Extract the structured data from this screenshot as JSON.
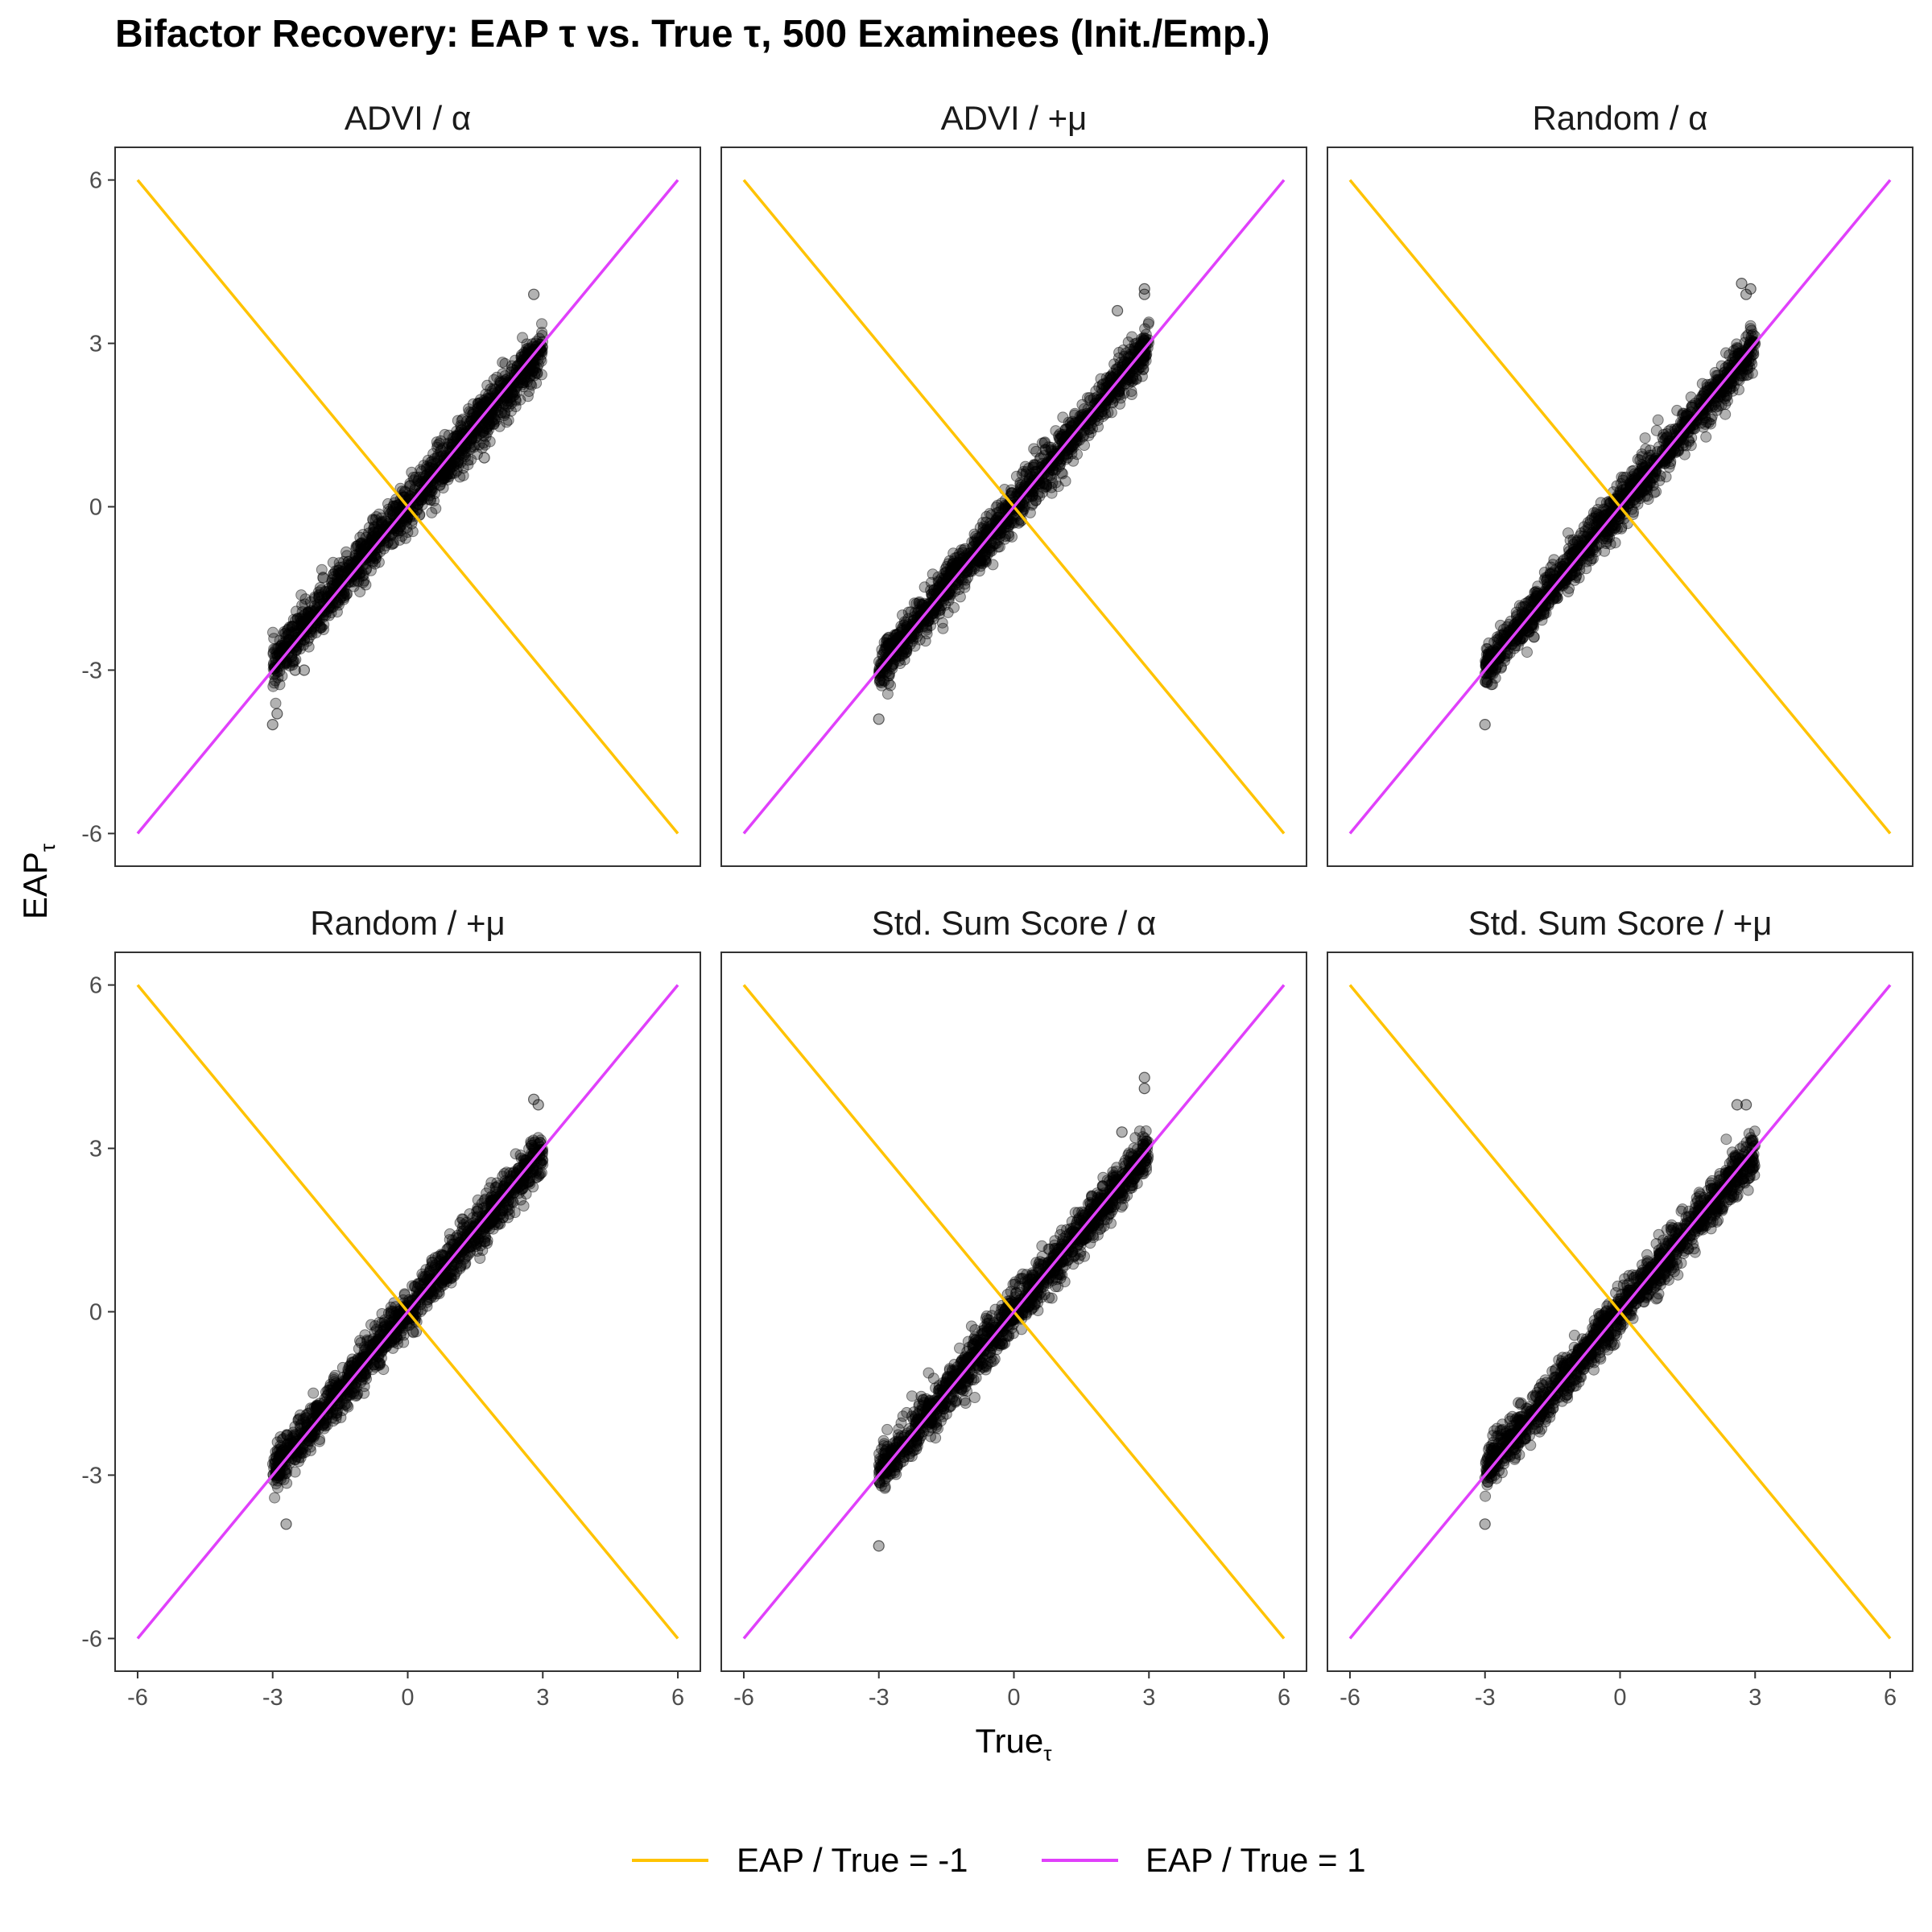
{
  "chart_data": {
    "type": "scatter",
    "title": "Bifactor Recovery: EAP τ vs. True τ, 500 Examinees (Init./Emp.)",
    "xlabel": {
      "main": "True",
      "sub": "τ"
    },
    "ylabel": {
      "main": "EAP",
      "sub": "τ"
    },
    "xlim": [
      -6.5,
      6.5
    ],
    "ylim": [
      -6.6,
      6.6
    ],
    "x_ticks": [
      "-6",
      "-3",
      "0",
      "3",
      "6"
    ],
    "y_ticks": [
      "6",
      "3",
      "0",
      "-3",
      "-6"
    ],
    "x_tick_values": [
      -6,
      -3,
      0,
      3,
      6
    ],
    "y_tick_values": [
      6,
      3,
      0,
      -3,
      -6
    ],
    "grid": false,
    "legend_position": "bottom",
    "point_color": "#000000",
    "point_opacity": 0.3,
    "reference_lines": [
      {
        "name": "EAP / True = -1",
        "color": "#FFC300",
        "slope": -1,
        "x": [
          -6,
          6
        ],
        "y": [
          6,
          -6
        ]
      },
      {
        "name": "EAP / True = 1",
        "color": "#E040FB",
        "slope": 1,
        "x": [
          -6,
          6
        ],
        "y": [
          -6,
          6
        ]
      }
    ],
    "panels": [
      {
        "label": "ADVI / α",
        "x_range": [
          -3,
          3
        ],
        "y_range": [
          -4.0,
          3.9
        ],
        "slope": 0.97,
        "spread": 0.22,
        "outliers": [
          [
            -3.0,
            -4.0
          ],
          [
            -2.9,
            -3.8
          ],
          [
            2.8,
            3.9
          ],
          [
            -2.5,
            -3.0
          ],
          [
            -2.3,
            -3.0
          ],
          [
            1.7,
            0.9
          ]
        ]
      },
      {
        "label": "ADVI / +μ",
        "x_range": [
          -3,
          3
        ],
        "y_range": [
          -3.9,
          4.0
        ],
        "slope": 0.99,
        "spread": 0.2,
        "outliers": [
          [
            -3.0,
            -3.9
          ],
          [
            2.9,
            4.0
          ],
          [
            2.3,
            3.6
          ],
          [
            2.9,
            3.9
          ]
        ]
      },
      {
        "label": "Random / α",
        "x_range": [
          -3,
          3
        ],
        "y_range": [
          -4.0,
          4.1
        ],
        "slope": 0.99,
        "spread": 0.2,
        "outliers": [
          [
            -3.0,
            -4.0
          ],
          [
            2.7,
            4.1
          ],
          [
            2.9,
            4.0
          ],
          [
            2.8,
            3.9
          ]
        ]
      },
      {
        "label": "Random / +μ",
        "x_range": [
          -3,
          3
        ],
        "y_range": [
          -3.9,
          3.9
        ],
        "slope": 0.98,
        "spread": 0.2,
        "outliers": [
          [
            -2.7,
            -3.9
          ],
          [
            2.8,
            3.9
          ],
          [
            2.9,
            3.8
          ]
        ]
      },
      {
        "label": "Std. Sum Score / α",
        "x_range": [
          -3,
          3
        ],
        "y_range": [
          -4.3,
          4.3
        ],
        "slope": 0.99,
        "spread": 0.21,
        "outliers": [
          [
            -3.0,
            -4.3
          ],
          [
            2.9,
            4.3
          ],
          [
            2.9,
            4.1
          ],
          [
            2.4,
            3.3
          ]
        ]
      },
      {
        "label": "Std. Sum Score / +μ",
        "x_range": [
          -3,
          3
        ],
        "y_range": [
          -3.9,
          3.8
        ],
        "slope": 0.98,
        "spread": 0.2,
        "outliers": [
          [
            -3.0,
            -3.9
          ],
          [
            2.6,
            3.8
          ],
          [
            2.8,
            3.8
          ]
        ]
      }
    ]
  }
}
